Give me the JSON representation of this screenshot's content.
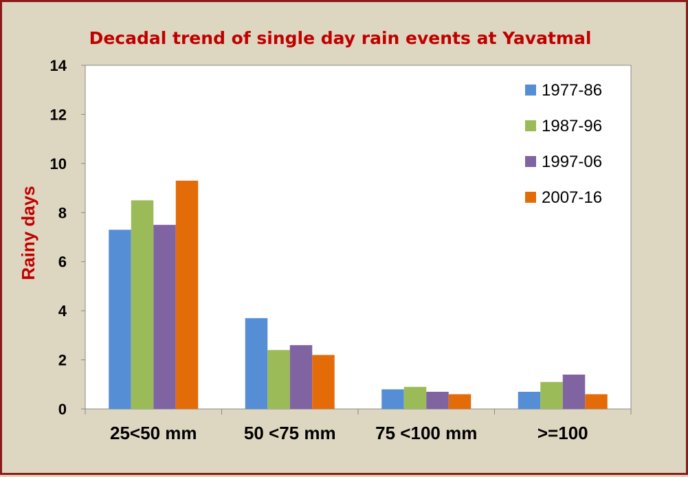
{
  "chart_data": {
    "type": "bar",
    "title": "Decadal trend of single day rain events  at  Yavatmal",
    "xlabel": "",
    "ylabel": "Rainy days",
    "ylim": [
      0,
      14
    ],
    "yticks": [
      "0",
      "2",
      "4",
      "6",
      "8",
      "10",
      "12",
      "14"
    ],
    "categories": [
      "25<50 mm",
      "50 <75 mm",
      "75 <100 mm",
      ">=100"
    ],
    "series": [
      {
        "name": "1977-86",
        "color": "#558ed5",
        "values": [
          7.3,
          3.7,
          0.8,
          0.7
        ]
      },
      {
        "name": "1987-96",
        "color": "#9bbb59",
        "values": [
          8.5,
          2.4,
          0.9,
          1.1
        ]
      },
      {
        "name": "1997-06",
        "color": "#8064a2",
        "values": [
          7.5,
          2.6,
          0.7,
          1.4
        ]
      },
      {
        "name": "2007-16",
        "color": "#e36c09",
        "values": [
          9.3,
          2.2,
          0.6,
          0.6
        ]
      }
    ],
    "grid": false,
    "legend_position": "top-right",
    "colors": {
      "title": "#c00000",
      "border": "#8b1a1a",
      "background": "#ddd6c0",
      "plot_background": "#ffffff"
    }
  }
}
